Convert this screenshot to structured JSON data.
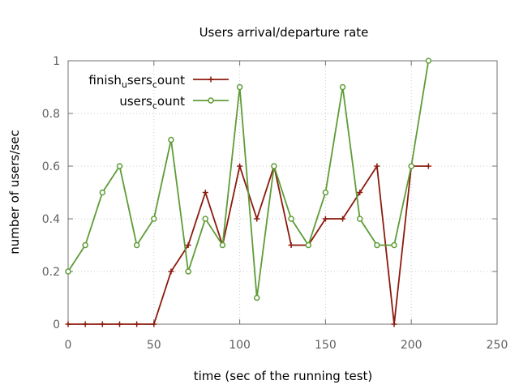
{
  "chart_data": {
    "type": "line",
    "title": "Users arrival/departure rate",
    "xlabel": "time (sec of the running test)",
    "ylabel": "number of users/sec",
    "xlim": [
      0,
      250
    ],
    "ylim": [
      0,
      1
    ],
    "xticks": [
      0,
      50,
      100,
      150,
      200,
      250
    ],
    "yticks": [
      0,
      0.2,
      0.4,
      0.6,
      0.8,
      1
    ],
    "xtick_labels": [
      "0",
      "50",
      "100",
      "150",
      "200",
      "250"
    ],
    "ytick_labels": [
      "0",
      "0.2",
      "0.4",
      "0.6",
      "0.8",
      "1"
    ],
    "grid": true,
    "legend_position": "top-left",
    "series": [
      {
        "name_parts": [
          [
            "finish",
            false
          ],
          [
            "u",
            true
          ],
          [
            "sers",
            false
          ],
          [
            "c",
            true
          ],
          [
            "ount",
            false
          ]
        ],
        "color": "#8b1a0e",
        "marker": "plus",
        "x": [
          0,
          10,
          20,
          30,
          40,
          50,
          60,
          70,
          80,
          90,
          100,
          110,
          120,
          130,
          140,
          150,
          160,
          170,
          180,
          190,
          200,
          210
        ],
        "values": [
          0,
          0,
          0,
          0,
          0,
          0,
          0.2,
          0.3,
          0.5,
          0.3,
          0.6,
          0.4,
          0.6,
          0.3,
          0.3,
          0.4,
          0.4,
          0.5,
          0.6,
          0,
          0.6,
          0.6
        ]
      },
      {
        "name_parts": [
          [
            "users",
            false
          ],
          [
            "c",
            true
          ],
          [
            "ount",
            false
          ]
        ],
        "color": "#5e9c36",
        "marker": "circle",
        "x": [
          0,
          10,
          20,
          30,
          40,
          50,
          60,
          70,
          80,
          90,
          100,
          110,
          120,
          130,
          140,
          150,
          160,
          170,
          180,
          190,
          200,
          210
        ],
        "values": [
          0.2,
          0.3,
          0.5,
          0.6,
          0.3,
          0.4,
          0.7,
          0.2,
          0.4,
          0.3,
          0.9,
          0.1,
          0.6,
          0.4,
          0.3,
          0.5,
          0.9,
          0.4,
          0.3,
          0.3,
          0.6,
          1.0
        ]
      }
    ]
  }
}
